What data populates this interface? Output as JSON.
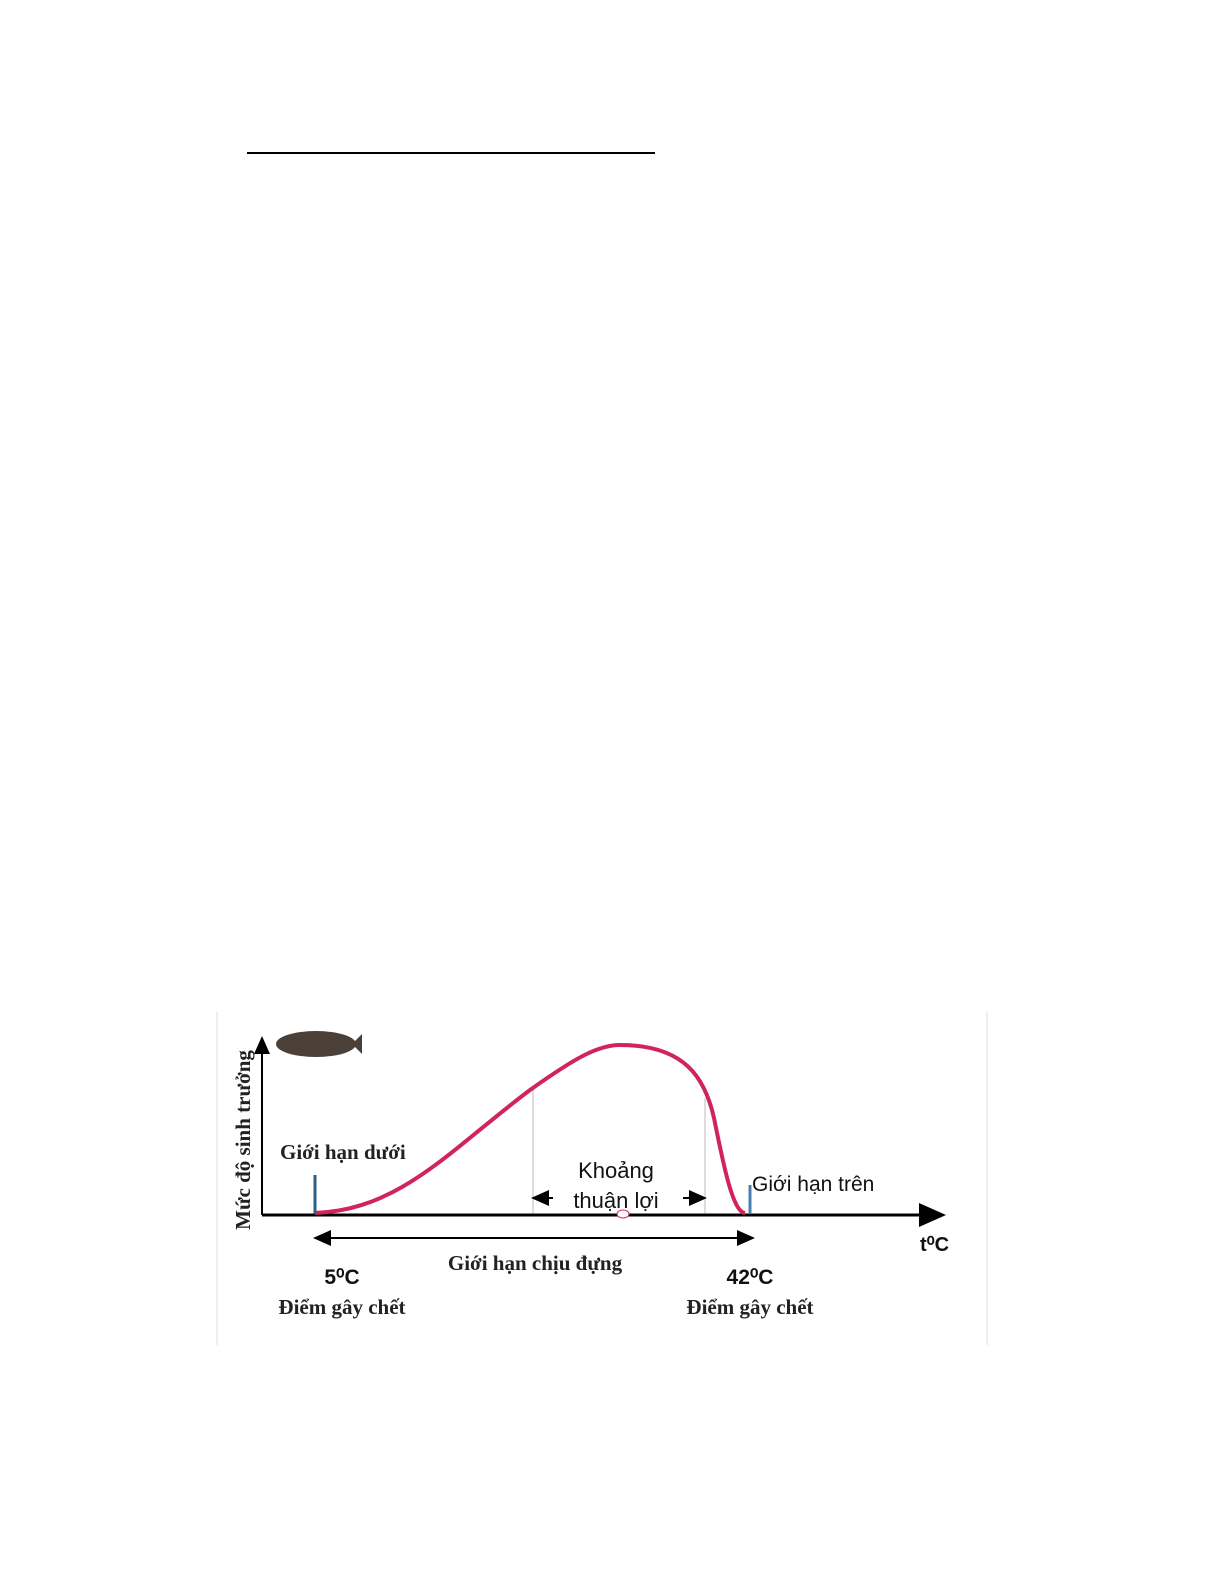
{
  "diagram": {
    "y_axis_label": "Mức độ sinh trưởng",
    "x_axis_label": "t⁰C",
    "lower_limit": "Giới hạn dưới",
    "upper_limit": "Giới hạn trên",
    "optimal_range": [
      "Khoảng",
      "thuận lợi"
    ],
    "tolerance_range": "Giới hạn chịu đựng",
    "lower_point": {
      "temperature": "5⁰C",
      "label": "Điểm gây chết"
    },
    "upper_point": {
      "temperature": "42⁰C",
      "label": "Điểm gây chết"
    }
  }
}
